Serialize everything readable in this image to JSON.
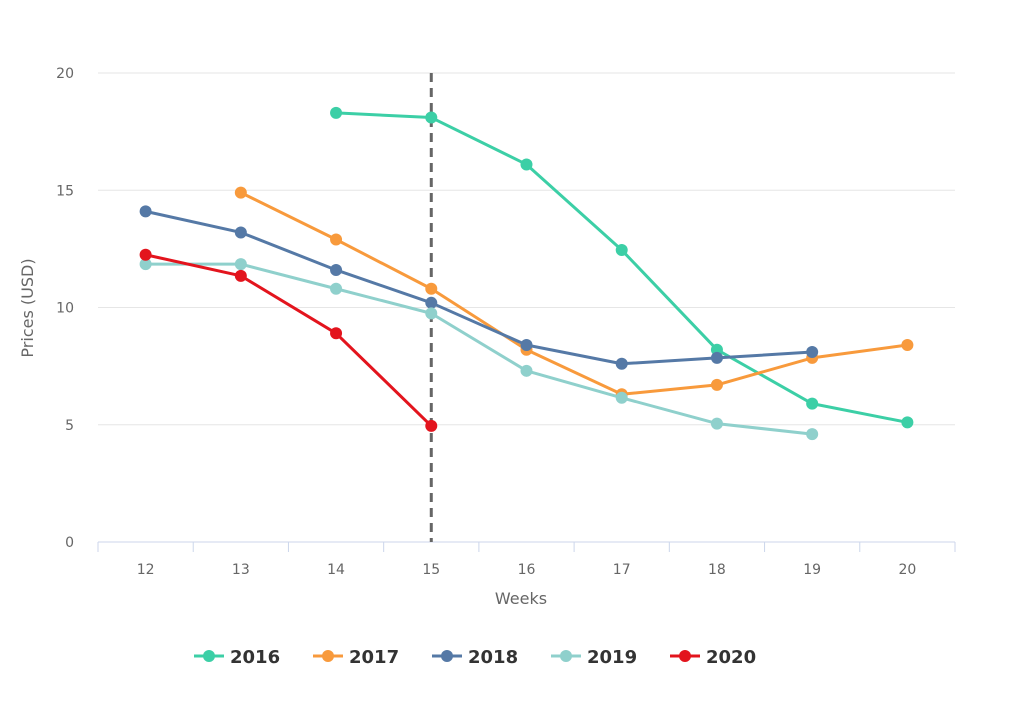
{
  "chart_data": {
    "type": "line",
    "title": "",
    "xlabel": "Weeks",
    "ylabel": "Prices (USD)",
    "x": [
      12,
      13,
      14,
      15,
      16,
      17,
      18,
      19,
      20
    ],
    "ylim": [
      0,
      20
    ],
    "yticks": [
      0,
      5,
      10,
      15,
      20
    ],
    "grid": true,
    "legend_position": "bottom-center",
    "annotation": {
      "type": "vertical-dashed-line",
      "x": 15,
      "color": "#666666"
    },
    "series": [
      {
        "name": "2016",
        "color": "#3ccfa6",
        "x": [
          14,
          15,
          16,
          17,
          18,
          19,
          20
        ],
        "values": [
          18.3,
          18.1,
          16.1,
          12.45,
          8.2,
          5.9,
          5.1
        ]
      },
      {
        "name": "2017",
        "color": "#f89a3c",
        "x": [
          13,
          14,
          15,
          16,
          17,
          18,
          19,
          20
        ],
        "values": [
          14.9,
          12.9,
          10.8,
          8.2,
          6.3,
          6.7,
          7.85,
          8.4
        ]
      },
      {
        "name": "2018",
        "color": "#5579a6",
        "x": [
          12,
          13,
          14,
          15,
          16,
          17,
          18,
          19
        ],
        "values": [
          14.1,
          13.2,
          11.6,
          10.2,
          8.4,
          7.6,
          7.85,
          8.1
        ]
      },
      {
        "name": "2019",
        "color": "#8fd0cc",
        "x": [
          12,
          13,
          14,
          15,
          16,
          17,
          18,
          19
        ],
        "values": [
          11.85,
          11.85,
          10.8,
          9.75,
          7.3,
          6.15,
          5.05,
          4.6
        ]
      },
      {
        "name": "2020",
        "color": "#e3141d",
        "x": [
          12,
          13,
          14,
          15
        ],
        "values": [
          12.25,
          11.35,
          8.9,
          4.95
        ]
      }
    ]
  }
}
